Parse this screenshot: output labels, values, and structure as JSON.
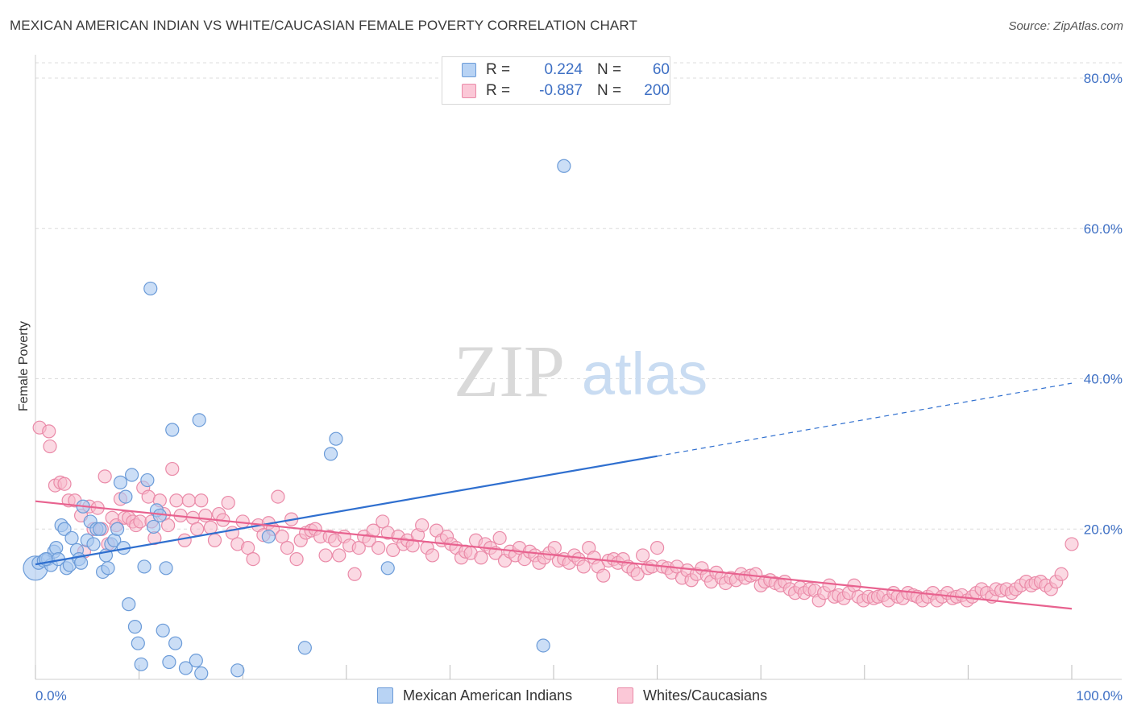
{
  "title": "MEXICAN AMERICAN INDIAN VS WHITE/CAUCASIAN FEMALE POVERTY CORRELATION CHART",
  "source": "Source: ZipAtlas.com",
  "watermark": {
    "part1": "ZIP",
    "part2": "atlas"
  },
  "legend_top": [
    {
      "r_label": "R =",
      "r_value": "0.224",
      "n_label": "N =",
      "n_value": "60"
    },
    {
      "r_label": "R =",
      "r_value": "-0.887",
      "n_label": "N =",
      "n_value": "200"
    }
  ],
  "legend_bottom": [
    {
      "label": "Mexican American Indians"
    },
    {
      "label": "Whites/Caucasians"
    }
  ],
  "colors": {
    "blue_fill": "#a9c8f0",
    "blue_stroke": "#6b9bd8",
    "blue_line": "#2f6fcf",
    "pink_fill": "#f7b9cc",
    "pink_stroke": "#ea8aa8",
    "pink_line": "#e8628f",
    "tick_text": "#3d6fc4",
    "grid": "#dcdcdc"
  },
  "chart_data": {
    "type": "scatter",
    "xlabel": "",
    "ylabel": "Female Poverty",
    "xlim": [
      0,
      100
    ],
    "ylim": [
      0,
      80
    ],
    "x_tick_labels": [
      "0.0%",
      "100.0%"
    ],
    "y_ticks": [
      20,
      40,
      60,
      80
    ],
    "y_tick_labels": [
      "20.0%",
      "40.0%",
      "60.0%",
      "80.0%"
    ],
    "grid": "horizontal dashed",
    "series": [
      {
        "name": "Mexican American Indians",
        "r": 0.224,
        "n": 60,
        "trend": {
          "x": [
            0,
            60
          ],
          "y": [
            15.3,
            29.7
          ],
          "dashed_to": [
            100,
            39.4
          ]
        },
        "points": [
          [
            0,
            14.8
          ],
          [
            0.3,
            15.5
          ],
          [
            0.8,
            15.8
          ],
          [
            1.2,
            16.0
          ],
          [
            1.5,
            15.2
          ],
          [
            1.8,
            17.0
          ],
          [
            2.0,
            17.5
          ],
          [
            2.2,
            16.0
          ],
          [
            2.5,
            20.5
          ],
          [
            2.8,
            20.0
          ],
          [
            3.0,
            14.8
          ],
          [
            3.3,
            15.2
          ],
          [
            3.5,
            18.8
          ],
          [
            4.0,
            17.2
          ],
          [
            4.2,
            16.0
          ],
          [
            4.4,
            15.5
          ],
          [
            4.6,
            23.0
          ],
          [
            5.0,
            18.5
          ],
          [
            5.3,
            21.0
          ],
          [
            5.6,
            18.0
          ],
          [
            5.9,
            20.0
          ],
          [
            6.2,
            20.0
          ],
          [
            6.5,
            14.3
          ],
          [
            6.8,
            16.5
          ],
          [
            7.0,
            14.8
          ],
          [
            7.3,
            18.0
          ],
          [
            7.6,
            18.5
          ],
          [
            7.9,
            20.0
          ],
          [
            8.2,
            26.2
          ],
          [
            8.5,
            17.5
          ],
          [
            8.7,
            24.3
          ],
          [
            9.0,
            10.0
          ],
          [
            9.3,
            27.2
          ],
          [
            9.6,
            7.0
          ],
          [
            9.9,
            4.8
          ],
          [
            10.2,
            2.0
          ],
          [
            10.5,
            15.0
          ],
          [
            10.8,
            26.5
          ],
          [
            11.1,
            52.0
          ],
          [
            11.4,
            20.3
          ],
          [
            11.7,
            22.5
          ],
          [
            12.0,
            21.8
          ],
          [
            12.3,
            6.5
          ],
          [
            12.6,
            14.8
          ],
          [
            12.9,
            2.3
          ],
          [
            13.2,
            33.2
          ],
          [
            13.5,
            4.8
          ],
          [
            14.5,
            1.5
          ],
          [
            15.5,
            2.5
          ],
          [
            15.8,
            34.5
          ],
          [
            16.0,
            0.8
          ],
          [
            19.5,
            1.2
          ],
          [
            22.5,
            19.0
          ],
          [
            26.0,
            4.2
          ],
          [
            28.5,
            30.0
          ],
          [
            29.0,
            32.0
          ],
          [
            34.0,
            14.8
          ],
          [
            51.0,
            68.3
          ],
          [
            49.0,
            4.5
          ],
          [
            1.0,
            16.0
          ]
        ]
      },
      {
        "name": "Whites/Caucasians",
        "r": -0.887,
        "n": 200,
        "trend": {
          "x": [
            0,
            100
          ],
          "y": [
            23.7,
            9.4
          ]
        },
        "points": [
          [
            0.4,
            33.5
          ],
          [
            1.3,
            33.0
          ],
          [
            1.4,
            31.0
          ],
          [
            1.9,
            25.8
          ],
          [
            2.4,
            26.2
          ],
          [
            2.8,
            26.0
          ],
          [
            3.2,
            23.8
          ],
          [
            3.8,
            23.8
          ],
          [
            4.4,
            21.8
          ],
          [
            4.7,
            17.0
          ],
          [
            5.2,
            23.0
          ],
          [
            5.6,
            20.0
          ],
          [
            6.0,
            22.8
          ],
          [
            6.4,
            20.0
          ],
          [
            6.7,
            27.0
          ],
          [
            7.0,
            18.0
          ],
          [
            7.4,
            21.5
          ],
          [
            7.8,
            20.5
          ],
          [
            8.2,
            24.0
          ],
          [
            8.6,
            21.5
          ],
          [
            9.0,
            21.5
          ],
          [
            9.4,
            21.0
          ],
          [
            9.7,
            20.5
          ],
          [
            10.1,
            21.0
          ],
          [
            10.4,
            25.5
          ],
          [
            10.9,
            24.3
          ],
          [
            11.2,
            21.0
          ],
          [
            11.5,
            18.8
          ],
          [
            12.0,
            23.8
          ],
          [
            12.4,
            22.0
          ],
          [
            12.8,
            20.5
          ],
          [
            13.2,
            28.0
          ],
          [
            13.6,
            23.8
          ],
          [
            14.0,
            21.8
          ],
          [
            14.4,
            18.5
          ],
          [
            14.8,
            23.8
          ],
          [
            15.2,
            21.5
          ],
          [
            15.6,
            20.0
          ],
          [
            16.0,
            23.8
          ],
          [
            16.4,
            21.8
          ],
          [
            16.9,
            20.2
          ],
          [
            17.3,
            18.5
          ],
          [
            17.7,
            22.0
          ],
          [
            18.1,
            21.2
          ],
          [
            18.6,
            23.5
          ],
          [
            19.0,
            19.5
          ],
          [
            19.5,
            18.0
          ],
          [
            20.0,
            21.0
          ],
          [
            20.5,
            17.5
          ],
          [
            21.0,
            16.0
          ],
          [
            21.5,
            20.5
          ],
          [
            22.0,
            19.2
          ],
          [
            22.5,
            20.8
          ],
          [
            22.9,
            20.0
          ],
          [
            23.4,
            24.3
          ],
          [
            23.8,
            19.0
          ],
          [
            24.3,
            17.5
          ],
          [
            24.7,
            21.3
          ],
          [
            25.2,
            16.0
          ],
          [
            25.6,
            18.5
          ],
          [
            26.1,
            19.5
          ],
          [
            26.6,
            19.8
          ],
          [
            27.0,
            20.0
          ],
          [
            27.5,
            19.0
          ],
          [
            28.0,
            16.5
          ],
          [
            28.4,
            19.0
          ],
          [
            28.9,
            18.5
          ],
          [
            29.3,
            16.5
          ],
          [
            29.8,
            19.0
          ],
          [
            30.3,
            17.8
          ],
          [
            30.8,
            14.0
          ],
          [
            31.2,
            17.5
          ],
          [
            31.7,
            19.0
          ],
          [
            32.2,
            18.5
          ],
          [
            32.6,
            19.8
          ],
          [
            33.1,
            17.5
          ],
          [
            33.5,
            21.0
          ],
          [
            34.0,
            19.5
          ],
          [
            34.5,
            17.2
          ],
          [
            35.0,
            19.0
          ],
          [
            35.5,
            18.0
          ],
          [
            35.9,
            18.5
          ],
          [
            36.4,
            17.8
          ],
          [
            36.9,
            19.2
          ],
          [
            37.3,
            20.5
          ],
          [
            37.8,
            17.5
          ],
          [
            38.3,
            16.5
          ],
          [
            38.7,
            19.8
          ],
          [
            39.2,
            18.5
          ],
          [
            39.7,
            19.0
          ],
          [
            40.1,
            18.0
          ],
          [
            40.6,
            17.5
          ],
          [
            41.1,
            16.2
          ],
          [
            41.5,
            17.0
          ],
          [
            42.0,
            16.8
          ],
          [
            42.5,
            18.5
          ],
          [
            43.0,
            16.2
          ],
          [
            43.4,
            18.0
          ],
          [
            43.9,
            17.5
          ],
          [
            44.4,
            16.8
          ],
          [
            44.8,
            18.8
          ],
          [
            45.3,
            15.8
          ],
          [
            45.8,
            17.0
          ],
          [
            46.3,
            16.5
          ],
          [
            46.7,
            17.5
          ],
          [
            47.2,
            16.0
          ],
          [
            47.7,
            17.0
          ],
          [
            48.2,
            16.5
          ],
          [
            48.6,
            15.5
          ],
          [
            49.1,
            16.2
          ],
          [
            49.6,
            16.8
          ],
          [
            50.1,
            17.5
          ],
          [
            50.5,
            15.8
          ],
          [
            51.0,
            16.0
          ],
          [
            51.5,
            15.5
          ],
          [
            52.0,
            16.5
          ],
          [
            52.4,
            16.0
          ],
          [
            52.9,
            15.0
          ],
          [
            53.4,
            17.5
          ],
          [
            53.9,
            16.2
          ],
          [
            54.3,
            15.0
          ],
          [
            54.8,
            13.8
          ],
          [
            55.3,
            15.8
          ],
          [
            55.8,
            16.0
          ],
          [
            56.2,
            15.5
          ],
          [
            56.7,
            16.0
          ],
          [
            57.2,
            15.0
          ],
          [
            57.7,
            14.5
          ],
          [
            58.1,
            14.0
          ],
          [
            58.6,
            16.5
          ],
          [
            59.1,
            14.8
          ],
          [
            59.5,
            15.0
          ],
          [
            60.0,
            17.5
          ],
          [
            60.5,
            15.0
          ],
          [
            61.0,
            14.8
          ],
          [
            61.4,
            14.2
          ],
          [
            61.9,
            15.0
          ],
          [
            62.4,
            13.5
          ],
          [
            62.9,
            14.5
          ],
          [
            63.3,
            13.2
          ],
          [
            63.8,
            14.0
          ],
          [
            64.3,
            14.8
          ],
          [
            64.8,
            13.8
          ],
          [
            65.2,
            13.0
          ],
          [
            65.7,
            14.2
          ],
          [
            66.2,
            13.5
          ],
          [
            66.6,
            12.8
          ],
          [
            67.1,
            13.5
          ],
          [
            67.6,
            13.2
          ],
          [
            68.1,
            14.0
          ],
          [
            68.5,
            13.5
          ],
          [
            69.0,
            13.8
          ],
          [
            69.5,
            14.0
          ],
          [
            70.0,
            12.5
          ],
          [
            70.4,
            13.0
          ],
          [
            70.9,
            13.2
          ],
          [
            71.4,
            12.8
          ],
          [
            71.9,
            12.5
          ],
          [
            72.3,
            13.0
          ],
          [
            72.8,
            12.0
          ],
          [
            73.3,
            11.5
          ],
          [
            73.8,
            12.2
          ],
          [
            74.2,
            11.5
          ],
          [
            74.7,
            12.0
          ],
          [
            75.2,
            11.8
          ],
          [
            75.6,
            10.5
          ],
          [
            76.1,
            11.5
          ],
          [
            76.6,
            12.5
          ],
          [
            77.1,
            11.0
          ],
          [
            77.5,
            11.2
          ],
          [
            78.0,
            10.8
          ],
          [
            78.5,
            11.5
          ],
          [
            79.0,
            12.5
          ],
          [
            79.4,
            11.0
          ],
          [
            79.9,
            10.5
          ],
          [
            80.4,
            11.0
          ],
          [
            80.9,
            10.8
          ],
          [
            81.3,
            11.0
          ],
          [
            81.8,
            11.2
          ],
          [
            82.3,
            10.5
          ],
          [
            82.8,
            11.5
          ],
          [
            83.2,
            11.0
          ],
          [
            83.7,
            10.8
          ],
          [
            84.2,
            11.5
          ],
          [
            84.7,
            11.2
          ],
          [
            85.1,
            11.0
          ],
          [
            85.6,
            10.5
          ],
          [
            86.1,
            11.0
          ],
          [
            86.6,
            11.5
          ],
          [
            87.0,
            10.5
          ],
          [
            87.5,
            11.0
          ],
          [
            88.0,
            11.5
          ],
          [
            88.5,
            10.8
          ],
          [
            88.9,
            11.0
          ],
          [
            89.4,
            11.2
          ],
          [
            89.9,
            10.5
          ],
          [
            90.4,
            11.0
          ],
          [
            90.8,
            11.5
          ],
          [
            91.3,
            12.0
          ],
          [
            91.8,
            11.5
          ],
          [
            92.3,
            11.0
          ],
          [
            92.7,
            12.0
          ],
          [
            93.2,
            11.8
          ],
          [
            93.7,
            12.0
          ],
          [
            94.2,
            11.5
          ],
          [
            94.6,
            12.0
          ],
          [
            95.1,
            12.5
          ],
          [
            95.6,
            13.0
          ],
          [
            96.1,
            12.5
          ],
          [
            96.5,
            12.8
          ],
          [
            97.0,
            13.0
          ],
          [
            97.5,
            12.5
          ],
          [
            98.0,
            12.0
          ],
          [
            98.5,
            13.0
          ],
          [
            99.0,
            14.0
          ],
          [
            100.0,
            18.0
          ]
        ]
      }
    ]
  }
}
